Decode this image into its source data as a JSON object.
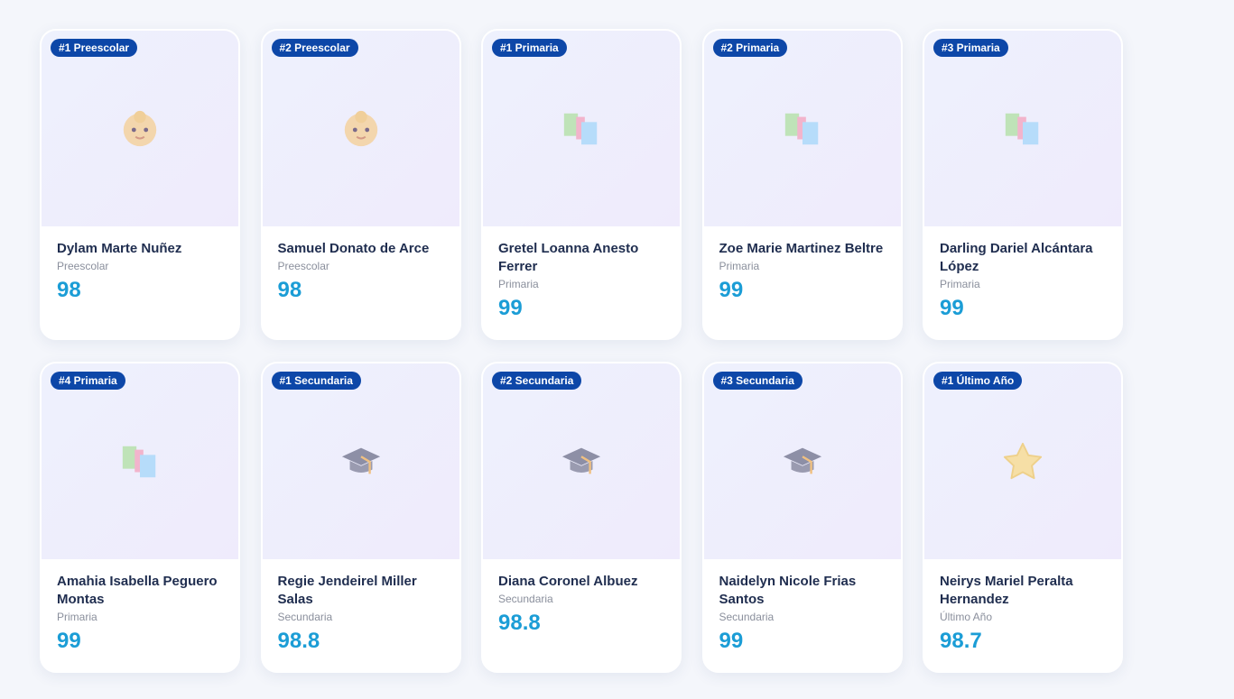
{
  "cards": [
    {
      "badge": "#1 Preescolar",
      "name": "Dylam Marte Nuñez",
      "level": "Preescolar",
      "score": 98
    },
    {
      "badge": "#2 Preescolar",
      "name": "Samuel Donato de Arce",
      "level": "Preescolar",
      "score": 98
    },
    {
      "badge": "#1 Primaria",
      "name": "Gretel Loanna Anesto Ferrer",
      "level": "Primaria",
      "score": 99
    },
    {
      "badge": "#2 Primaria",
      "name": "Zoe Marie Martinez Beltre",
      "level": "Primaria",
      "score": 99
    },
    {
      "badge": "#3 Primaria",
      "name": "Darling Dariel Alcántara López",
      "level": "Primaria",
      "score": 99
    },
    {
      "badge": "#4 Primaria",
      "name": "Amahia Isabella Peguero Montas",
      "level": "Primaria",
      "score": 99
    },
    {
      "badge": "#1 Secundaria",
      "name": "Regie Jendeirel Miller Salas",
      "level": "Secundaria",
      "score": 98.8
    },
    {
      "badge": "#2 Secundaria",
      "name": "Diana Coronel Albuez",
      "level": "Secundaria",
      "score": 98.8
    },
    {
      "badge": "#3 Secundaria",
      "name": "Naidelyn Nicole Frias Santos",
      "level": "Secundaria",
      "score": 99
    },
    {
      "badge": "#1 Último Año",
      "name": "Neirys Mariel Peralta Hernandez",
      "level": "Último Año",
      "score": 98.7
    }
  ]
}
